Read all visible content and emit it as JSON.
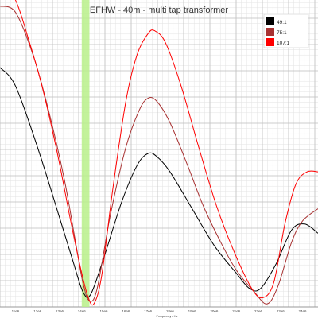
{
  "chart_data": {
    "type": "line",
    "title": "EFHW - 40m - multi tap transformer",
    "xlabel": "Frequency / Hz",
    "ylabel": "",
    "x_ticks": [
      "11e6",
      "12e6",
      "13e6",
      "14e6",
      "15e6",
      "16e6",
      "17e6",
      "18e6",
      "19e6",
      "20e6",
      "21e6",
      "22e6",
      "23e6",
      "24e6"
    ],
    "xlim": [
      10.3,
      24.7
    ],
    "ylim": [
      0,
      100
    ],
    "grid": true,
    "legend_position": "top-right",
    "highlight_band": {
      "x_start": 14.0,
      "x_end": 14.35,
      "color": "#b8f08a"
    },
    "series": [
      {
        "name": "49:1",
        "color": "#000000",
        "points": [
          [
            10.3,
            78
          ],
          [
            11.0,
            72
          ],
          [
            12.0,
            52
          ],
          [
            13.0,
            29
          ],
          [
            13.6,
            15
          ],
          [
            14.05,
            5
          ],
          [
            14.4,
            4
          ],
          [
            15.0,
            16
          ],
          [
            15.8,
            34
          ],
          [
            16.5,
            46
          ],
          [
            17.0,
            50
          ],
          [
            17.4,
            49
          ],
          [
            18.0,
            44
          ],
          [
            19.0,
            32
          ],
          [
            20.0,
            20
          ],
          [
            21.0,
            11
          ],
          [
            21.6,
            6
          ],
          [
            22.1,
            6
          ],
          [
            22.8,
            14
          ],
          [
            23.5,
            25
          ],
          [
            24.1,
            27
          ],
          [
            24.7,
            24
          ]
        ]
      },
      {
        "name": "75:1",
        "color": "#a83232",
        "points": [
          [
            10.3,
            98
          ],
          [
            11.0,
            96
          ],
          [
            11.8,
            82
          ],
          [
            12.5,
            64
          ],
          [
            13.2,
            42
          ],
          [
            13.7,
            22
          ],
          [
            14.05,
            8
          ],
          [
            14.35,
            2
          ],
          [
            14.7,
            6
          ],
          [
            15.3,
            30
          ],
          [
            16.0,
            52
          ],
          [
            16.6,
            64
          ],
          [
            17.0,
            68
          ],
          [
            17.4,
            67
          ],
          [
            18.0,
            60
          ],
          [
            18.8,
            46
          ],
          [
            19.5,
            33
          ],
          [
            20.3,
            21
          ],
          [
            21.0,
            12
          ],
          [
            21.8,
            5
          ],
          [
            22.4,
            1
          ],
          [
            22.9,
            7
          ],
          [
            23.5,
            21
          ],
          [
            24.0,
            28
          ],
          [
            24.7,
            32
          ]
        ]
      },
      {
        "name": "107:1",
        "color": "#ff0000",
        "points": [
          [
            10.3,
            106
          ],
          [
            11.0,
            100
          ],
          [
            11.6,
            87
          ],
          [
            12.2,
            72
          ],
          [
            12.9,
            50
          ],
          [
            13.5,
            28
          ],
          [
            14.0,
            11
          ],
          [
            14.3,
            3
          ],
          [
            14.55,
            1
          ],
          [
            14.9,
            10
          ],
          [
            15.4,
            38
          ],
          [
            16.0,
            67
          ],
          [
            16.5,
            82
          ],
          [
            17.0,
            89
          ],
          [
            17.3,
            90
          ],
          [
            17.8,
            86
          ],
          [
            18.5,
            72
          ],
          [
            19.3,
            52
          ],
          [
            20.1,
            33
          ],
          [
            20.9,
            18
          ],
          [
            21.7,
            6
          ],
          [
            22.2,
            3
          ],
          [
            22.7,
            8
          ],
          [
            23.2,
            27
          ],
          [
            23.7,
            40
          ],
          [
            24.2,
            44
          ],
          [
            24.7,
            44
          ]
        ]
      }
    ]
  }
}
